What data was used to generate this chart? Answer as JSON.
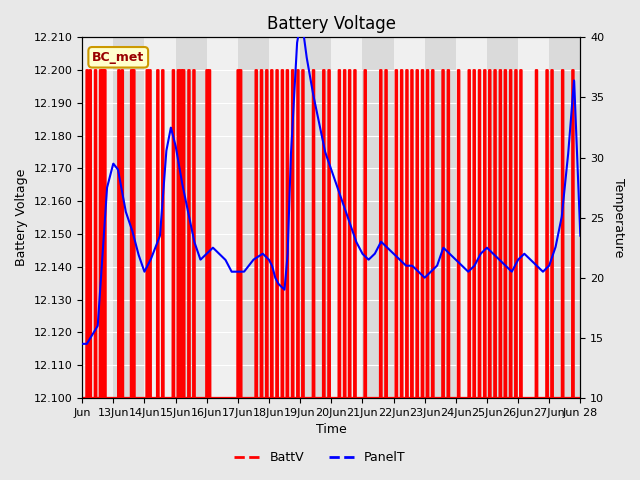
{
  "title": "Battery Voltage",
  "xlabel": "Time",
  "ylabel_left": "Battery Voltage",
  "ylabel_right": "Temperature",
  "annotation_text": "BC_met",
  "annotation_bg": "#ffffcc",
  "annotation_border": "#cc9900",
  "annotation_text_color": "#990000",
  "ylim_left": [
    12.1,
    12.21
  ],
  "ylim_right": [
    10,
    40
  ],
  "yticks_left": [
    12.1,
    12.11,
    12.12,
    12.13,
    12.14,
    12.15,
    12.16,
    12.17,
    12.18,
    12.19,
    12.2,
    12.21
  ],
  "yticks_right": [
    10,
    15,
    20,
    25,
    30,
    35,
    40
  ],
  "xtick_labels": [
    "Jun",
    "13Jun",
    "14Jun",
    "15Jun",
    "16Jun",
    "17Jun",
    "18Jun",
    "19Jun",
    "20Jun",
    "21Jun",
    "22Jun",
    "23Jun",
    "24Jun",
    "25Jun",
    "26Jun",
    "27Jun",
    "Jun 28"
  ],
  "bg_color": "#e8e8e8",
  "plot_bg_color": "#f0f0f0",
  "grid_color": "#ffffff",
  "battv_color": "#ff0000",
  "panelt_color": "#0000ff",
  "spike_positions": [
    0.16,
    0.26,
    0.43,
    0.59,
    0.66,
    0.73,
    1.18,
    1.29,
    1.59,
    1.66,
    2.09,
    2.18,
    2.43,
    2.59,
    2.93,
    3.09,
    3.18,
    3.26,
    3.43,
    3.59,
    4.01,
    4.09,
    5.01,
    5.09,
    5.59,
    5.76,
    5.93,
    6.09,
    6.26,
    6.43,
    6.59,
    6.76,
    6.93,
    7.09,
    7.43,
    7.76,
    7.93,
    8.26,
    8.43,
    8.59,
    8.76,
    9.09,
    9.59,
    9.76,
    10.09,
    10.26,
    10.43,
    10.59,
    10.76,
    10.93,
    11.09,
    11.26,
    11.59,
    11.76,
    12.09,
    12.43,
    12.59,
    12.76,
    12.93,
    13.09,
    13.26,
    13.43,
    13.59,
    13.76,
    13.93,
    14.09,
    14.59,
    14.93,
    15.09,
    15.43,
    15.76
  ],
  "panel_key_x": [
    0.0,
    0.15,
    0.5,
    0.8,
    1.0,
    1.15,
    1.4,
    1.6,
    1.8,
    2.0,
    2.2,
    2.5,
    2.7,
    2.85,
    3.0,
    3.2,
    3.4,
    3.6,
    3.8,
    4.0,
    4.2,
    4.4,
    4.6,
    4.8,
    5.0,
    5.2,
    5.5,
    5.8,
    6.0,
    6.1,
    6.2,
    6.3,
    6.5,
    6.6,
    6.7,
    6.9,
    7.0,
    7.1,
    7.2,
    7.4,
    7.6,
    7.8,
    8.0,
    8.2,
    8.4,
    8.6,
    8.8,
    9.0,
    9.2,
    9.4,
    9.6,
    9.8,
    10.0,
    10.2,
    10.4,
    10.6,
    10.8,
    11.0,
    11.2,
    11.4,
    11.6,
    11.8,
    12.0,
    12.2,
    12.4,
    12.6,
    12.8,
    13.0,
    13.2,
    13.4,
    13.6,
    13.8,
    14.0,
    14.2,
    14.4,
    14.6,
    14.8,
    15.0,
    15.2,
    15.4,
    15.6,
    15.8,
    16.0
  ],
  "panel_key_y": [
    14.5,
    14.5,
    16.0,
    27.5,
    29.5,
    29.0,
    25.5,
    24.0,
    22.0,
    20.5,
    21.5,
    23.5,
    30.5,
    32.5,
    31.0,
    28.0,
    25.5,
    23.0,
    21.5,
    22.0,
    22.5,
    22.0,
    21.5,
    20.5,
    20.5,
    20.5,
    21.5,
    22.0,
    21.5,
    21.0,
    20.0,
    19.5,
    19.0,
    22.0,
    30.0,
    39.5,
    41.0,
    40.5,
    38.5,
    35.5,
    33.0,
    30.5,
    29.0,
    27.5,
    26.0,
    24.5,
    23.0,
    22.0,
    21.5,
    22.0,
    23.0,
    22.5,
    22.0,
    21.5,
    21.0,
    21.0,
    20.5,
    20.0,
    20.5,
    21.0,
    22.5,
    22.0,
    21.5,
    21.0,
    20.5,
    21.0,
    22.0,
    22.5,
    22.0,
    21.5,
    21.0,
    20.5,
    21.5,
    22.0,
    21.5,
    21.0,
    20.5,
    21.0,
    22.5,
    25.0,
    30.0,
    36.5,
    23.5
  ]
}
